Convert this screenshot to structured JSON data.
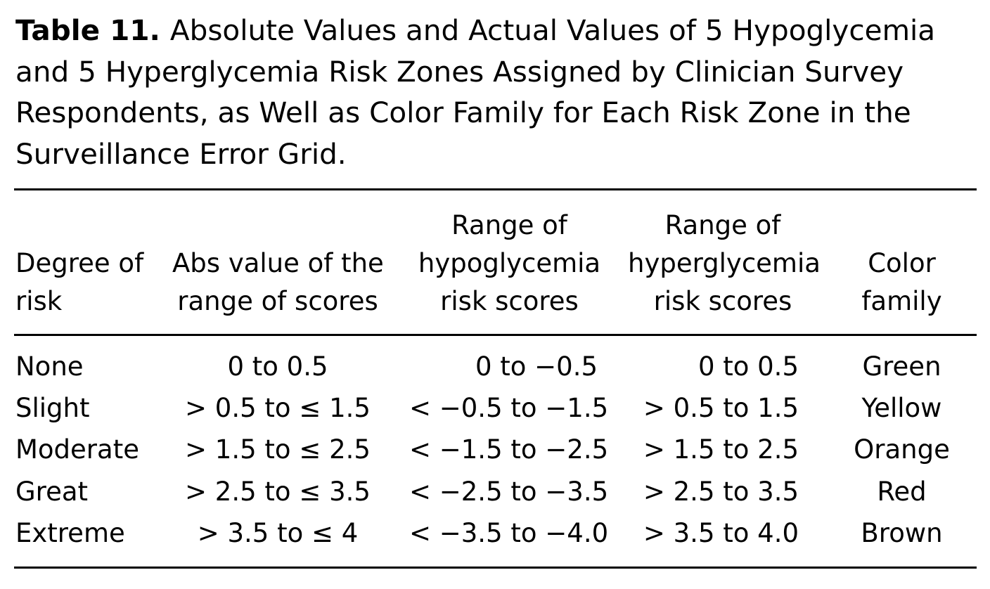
{
  "caption": {
    "label": "Table 11.",
    "text": "Absolute Values and Actual Values of 5 Hypoglycemia and 5 Hyperglycemia Risk Zones Assigned by Clinician Survey Respondents, as Well as Color Family for Each Risk Zone in the Surveillance Error Grid."
  },
  "table": {
    "headers": {
      "degree": [
        "",
        "Degree of",
        "risk"
      ],
      "abs": [
        "",
        "Abs value of the",
        "range of scores"
      ],
      "hypo": [
        "Range of",
        "hypoglycemia",
        "risk scores"
      ],
      "hyper": [
        "Range of",
        "hyperglycemia",
        "risk scores"
      ],
      "color": [
        "",
        "Color",
        "family"
      ]
    },
    "rows": [
      {
        "degree": "None",
        "abs": "0 to 0.5",
        "hypo": "0 to −0.5",
        "hyper": "0 to 0.5",
        "color": "Green"
      },
      {
        "degree": "Slight",
        "abs": "> 0.5 to ≤ 1.5",
        "hypo": "< −0.5 to −1.5",
        "hyper": "> 0.5 to 1.5",
        "color": "Yellow"
      },
      {
        "degree": "Moderate",
        "abs": "> 1.5 to ≤ 2.5",
        "hypo": "< −1.5 to −2.5",
        "hyper": "> 1.5 to 2.5",
        "color": "Orange"
      },
      {
        "degree": "Great",
        "abs": "> 2.5 to ≤ 3.5",
        "hypo": "< −2.5 to −3.5",
        "hyper": "> 2.5 to 3.5",
        "color": "Red"
      },
      {
        "degree": "Extreme",
        "abs": "> 3.5 to ≤ 4",
        "hypo": "< −3.5 to −4.0",
        "hyper": "> 3.5 to 4.0",
        "color": "Brown"
      }
    ]
  }
}
